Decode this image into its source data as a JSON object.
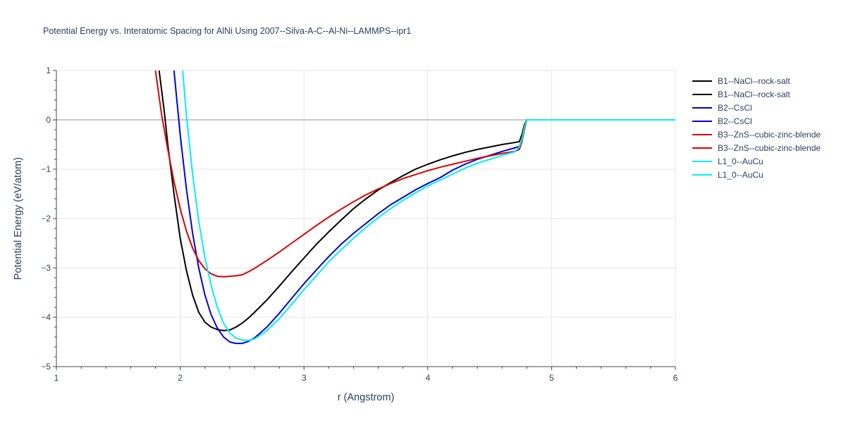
{
  "chart_data": {
    "type": "line",
    "title": "Potential Energy vs. Interatomic Spacing for AlNi Using 2007--Silva-A-C--Al-Ni--LAMMPS--ipr1",
    "xlabel": "r (Angstrom)",
    "ylabel": "Potential Energy (eV/atom)",
    "xlim": [
      1,
      6
    ],
    "ylim": [
      -5,
      1
    ],
    "xticks": [
      1,
      2,
      3,
      4,
      5,
      6
    ],
    "yticks": [
      1,
      0,
      -1,
      -2,
      -3,
      -4,
      -5
    ],
    "xtick_labels": [
      "1",
      "2",
      "3",
      "4",
      "5",
      "6"
    ],
    "ytick_labels": [
      "1",
      "0",
      "−1",
      "−2",
      "−3",
      "−4",
      "−5"
    ],
    "grid": true,
    "legend_position": "right",
    "series": [
      {
        "name": "B1--NaCl--rock-salt",
        "color": "#000000",
        "x": [
          1.83,
          1.87,
          1.9,
          1.95,
          2.0,
          2.05,
          2.1,
          2.15,
          2.2,
          2.25,
          2.3,
          2.35,
          2.4,
          2.45,
          2.5,
          2.55,
          2.6,
          2.7,
          2.8,
          2.9,
          3.0,
          3.1,
          3.2,
          3.3,
          3.4,
          3.5,
          3.6,
          3.7,
          3.8,
          3.9,
          4.0,
          4.1,
          4.2,
          4.3,
          4.4,
          4.5,
          4.6,
          4.7,
          4.74,
          4.76,
          4.78,
          4.8
        ],
        "y": [
          1.0,
          0.2,
          -0.5,
          -1.5,
          -2.4,
          -3.05,
          -3.55,
          -3.9,
          -4.1,
          -4.2,
          -4.25,
          -4.27,
          -4.26,
          -4.2,
          -4.12,
          -4.02,
          -3.9,
          -3.65,
          -3.37,
          -3.08,
          -2.8,
          -2.52,
          -2.27,
          -2.03,
          -1.8,
          -1.6,
          -1.42,
          -1.27,
          -1.13,
          -1.0,
          -0.9,
          -0.81,
          -0.73,
          -0.66,
          -0.6,
          -0.55,
          -0.5,
          -0.46,
          -0.44,
          -0.3,
          -0.1,
          0.0
        ]
      },
      {
        "name": "B1--NaCl--rock-salt",
        "color": "#000000",
        "x": [
          4.8,
          5.0,
          5.5,
          6.0
        ],
        "y": [
          0.0,
          0.0,
          0.0,
          0.0
        ]
      },
      {
        "name": "B2--CsCl",
        "color": "#0000dd",
        "x": [
          1.95,
          2.0,
          2.05,
          2.1,
          2.15,
          2.2,
          2.25,
          2.3,
          2.35,
          2.4,
          2.45,
          2.5,
          2.55,
          2.6,
          2.7,
          2.8,
          2.9,
          3.0,
          3.1,
          3.2,
          3.3,
          3.4,
          3.5,
          3.6,
          3.7,
          3.8,
          3.9,
          4.0,
          4.1,
          4.2,
          4.3,
          4.4,
          4.5,
          4.6,
          4.7,
          4.74,
          4.76,
          4.78,
          4.8
        ],
        "y": [
          1.0,
          -0.3,
          -1.4,
          -2.3,
          -3.0,
          -3.55,
          -3.95,
          -4.22,
          -4.4,
          -4.5,
          -4.53,
          -4.53,
          -4.49,
          -4.42,
          -4.2,
          -3.92,
          -3.62,
          -3.32,
          -3.04,
          -2.77,
          -2.52,
          -2.3,
          -2.1,
          -1.9,
          -1.72,
          -1.57,
          -1.42,
          -1.29,
          -1.17,
          -1.02,
          -0.9,
          -0.8,
          -0.72,
          -0.64,
          -0.57,
          -0.54,
          -0.4,
          -0.15,
          0.0
        ]
      },
      {
        "name": "B2--CsCl",
        "color": "#0000dd",
        "x": [
          4.8,
          5.0,
          5.5,
          6.0
        ],
        "y": [
          0.0,
          0.0,
          0.0,
          0.0
        ]
      },
      {
        "name": "B3--ZnS--cubic-zinc-blende",
        "color": "#dd0000",
        "x": [
          1.8,
          1.85,
          1.9,
          1.95,
          2.0,
          2.05,
          2.1,
          2.15,
          2.2,
          2.25,
          2.3,
          2.35,
          2.4,
          2.45,
          2.5,
          2.55,
          2.6,
          2.7,
          2.8,
          2.9,
          3.0,
          3.1,
          3.2,
          3.3,
          3.4,
          3.5,
          3.6,
          3.7,
          3.8,
          3.9,
          4.0,
          4.1,
          4.2,
          4.3,
          4.4,
          4.5,
          4.6,
          4.7,
          4.74,
          4.76,
          4.78,
          4.8
        ],
        "y": [
          1.0,
          0.1,
          -0.6,
          -1.25,
          -1.8,
          -2.25,
          -2.6,
          -2.85,
          -3.02,
          -3.12,
          -3.17,
          -3.18,
          -3.17,
          -3.16,
          -3.14,
          -3.08,
          -3.01,
          -2.85,
          -2.68,
          -2.5,
          -2.32,
          -2.14,
          -1.97,
          -1.81,
          -1.66,
          -1.52,
          -1.4,
          -1.29,
          -1.19,
          -1.11,
          -1.03,
          -0.96,
          -0.9,
          -0.84,
          -0.78,
          -0.73,
          -0.68,
          -0.64,
          -0.6,
          -0.45,
          -0.2,
          0.0
        ]
      },
      {
        "name": "B3--ZnS--cubic-zinc-blende",
        "color": "#dd0000",
        "x": [
          4.8,
          5.0,
          5.5,
          6.0
        ],
        "y": [
          0.0,
          0.0,
          0.0,
          0.0
        ]
      },
      {
        "name": "L1_0--AuCu",
        "color": "#00f0f0",
        "x": [
          2.02,
          2.05,
          2.1,
          2.15,
          2.2,
          2.25,
          2.3,
          2.35,
          2.4,
          2.45,
          2.5,
          2.55,
          2.6,
          2.7,
          2.8,
          2.9,
          3.0,
          3.1,
          3.2,
          3.3,
          3.4,
          3.5,
          3.6,
          3.7,
          3.8,
          3.9,
          4.0,
          4.1,
          4.2,
          4.3,
          4.4,
          4.5,
          4.6,
          4.7,
          4.74,
          4.76,
          4.78,
          4.8
        ],
        "y": [
          1.0,
          0.1,
          -1.1,
          -2.05,
          -2.8,
          -3.35,
          -3.8,
          -4.12,
          -4.32,
          -4.42,
          -4.46,
          -4.47,
          -4.44,
          -4.27,
          -4.03,
          -3.74,
          -3.44,
          -3.16,
          -2.88,
          -2.63,
          -2.4,
          -2.18,
          -1.98,
          -1.8,
          -1.63,
          -1.48,
          -1.34,
          -1.22,
          -1.1,
          -0.98,
          -0.88,
          -0.8,
          -0.72,
          -0.65,
          -0.55,
          -0.4,
          -0.15,
          0.0
        ]
      },
      {
        "name": "L1_0--AuCu",
        "color": "#00f0f0",
        "x": [
          4.8,
          5.0,
          5.5,
          6.0
        ],
        "y": [
          0.0,
          0.0,
          0.0,
          0.0
        ]
      }
    ]
  }
}
